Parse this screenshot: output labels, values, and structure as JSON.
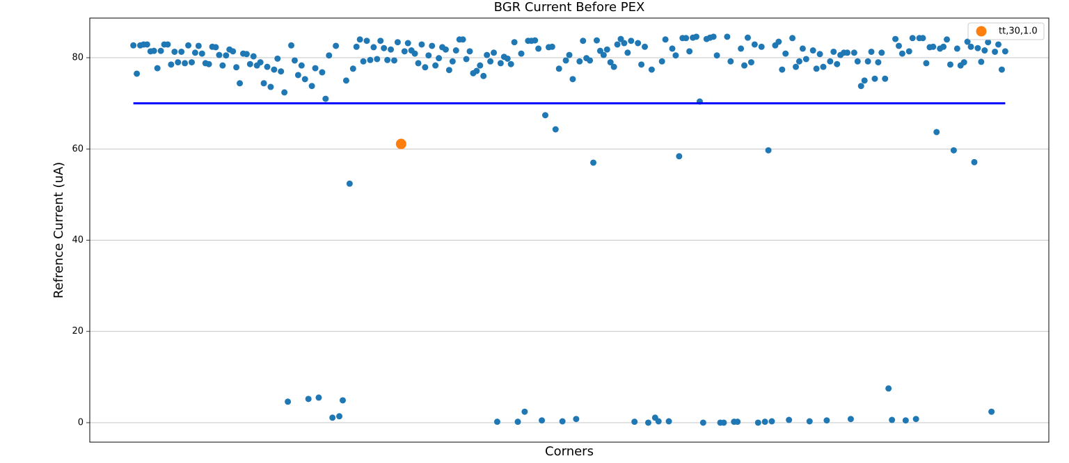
{
  "chart_data": {
    "type": "scatter",
    "title": "BGR Current Before PEX",
    "xlabel": "Corners",
    "ylabel": "Refrence Current (uA)",
    "xlim": [
      -12.7,
      266.7
    ],
    "ylim": [
      -4.27,
      88.69
    ],
    "yticks": [
      0,
      20,
      40,
      60,
      80
    ],
    "grid": true,
    "legend": "upper right",
    "series": [
      {
        "kind": "scatter",
        "color": "#1f77b4",
        "x": [
          0,
          1,
          2,
          3,
          4,
          5,
          6,
          7,
          8,
          9,
          10,
          11,
          12,
          13,
          14,
          15,
          16,
          17,
          18,
          19,
          20,
          21,
          22,
          23,
          24,
          25,
          26,
          27,
          28,
          29,
          30,
          31,
          32,
          33,
          34,
          35,
          36,
          37,
          38,
          39,
          40,
          41,
          42,
          43,
          44,
          45,
          46,
          47,
          48,
          49,
          50,
          51,
          52,
          53,
          54,
          55,
          56,
          57,
          58,
          59,
          60,
          61,
          62,
          63,
          64,
          65,
          66,
          67,
          68,
          69,
          70,
          71,
          72,
          73,
          74,
          75,
          76,
          77,
          78,
          79,
          80,
          81,
          82,
          83,
          84,
          85,
          86,
          87,
          88,
          89,
          90,
          91,
          92,
          93,
          94,
          95,
          96,
          97,
          98,
          99,
          100,
          101,
          102,
          103,
          104,
          105,
          106,
          107,
          108,
          109,
          110,
          111,
          112,
          113,
          114,
          115,
          116,
          117,
          118,
          119,
          120,
          121,
          122,
          123,
          124,
          125,
          126,
          127,
          128,
          129,
          130,
          131,
          132,
          133,
          134,
          135,
          136,
          137,
          138,
          139,
          140,
          141,
          142,
          143,
          144,
          145,
          146,
          147,
          148,
          149,
          150,
          151,
          152,
          153,
          154,
          155,
          156,
          157,
          158,
          159,
          160,
          161,
          162,
          163,
          164,
          165,
          166,
          167,
          168,
          169,
          170,
          171,
          172,
          173,
          174,
          175,
          176,
          177,
          178,
          179,
          180,
          181,
          182,
          183,
          184,
          185,
          186,
          187,
          188,
          189,
          190,
          191,
          192,
          193,
          194,
          195,
          196,
          197,
          198,
          199,
          200,
          201,
          202,
          203,
          204,
          205,
          206,
          207,
          208,
          209,
          210,
          211,
          212,
          213,
          214,
          215,
          216,
          217,
          218,
          219,
          220,
          221,
          222,
          223,
          224,
          225,
          226,
          227,
          228,
          229,
          230,
          231,
          232,
          233,
          234,
          235,
          236,
          237,
          238,
          239,
          240,
          241,
          242,
          243,
          244,
          245,
          246,
          247,
          248,
          249,
          250,
          251,
          252,
          253,
          254
        ],
        "values": [
          82.7,
          76.5,
          82.7,
          82.9,
          82.9,
          81.4,
          81.5,
          77.7,
          81.5,
          82.9,
          82.9,
          78.5,
          81.3,
          79.0,
          81.3,
          78.8,
          82.7,
          79.0,
          81.1,
          82.6,
          80.9,
          78.8,
          78.6,
          82.4,
          82.3,
          80.6,
          78.3,
          80.5,
          81.8,
          81.4,
          77.9,
          74.4,
          80.9,
          80.8,
          78.6,
          80.3,
          78.3,
          79.0,
          74.4,
          78.0,
          73.6,
          77.4,
          79.8,
          77.0,
          72.4,
          4.6,
          82.7,
          79.4,
          76.2,
          78.3,
          75.3,
          5.2,
          73.8,
          77.7,
          5.5,
          76.8,
          71.0,
          80.5,
          1.1,
          82.6,
          1.4,
          4.9,
          75.0,
          52.4,
          77.6,
          82.4,
          84.0,
          79.2,
          83.7,
          79.5,
          82.3,
          79.7,
          83.7,
          82.1,
          79.5,
          81.8,
          79.4,
          83.4,
          61.1,
          81.4,
          83.2,
          81.6,
          80.9,
          78.8,
          82.9,
          77.9,
          80.5,
          82.6,
          78.3,
          79.9,
          82.3,
          81.8,
          77.3,
          79.2,
          81.6,
          84.0,
          84.0,
          79.7,
          81.4,
          76.6,
          77.1,
          78.3,
          76.0,
          80.6,
          79.2,
          81.1,
          0.2,
          78.8,
          80.2,
          79.8,
          78.6,
          83.4,
          0.2,
          80.9,
          2.4,
          83.7,
          83.7,
          83.8,
          82.0,
          0.5,
          67.4,
          82.3,
          82.4,
          64.3,
          77.6,
          0.3,
          79.4,
          80.6,
          75.3,
          0.8,
          79.2,
          83.7,
          79.9,
          79.4,
          57.0,
          83.8,
          81.5,
          80.6,
          81.8,
          79.0,
          78.0,
          82.9,
          84.1,
          83.2,
          81.1,
          83.7,
          0.2,
          83.2,
          78.5,
          82.4,
          0.0,
          77.4,
          1.1,
          0.3,
          79.2,
          84.0,
          0.3,
          82.0,
          80.5,
          58.4,
          84.3,
          84.3,
          81.4,
          84.4,
          84.6,
          70.4,
          0.0,
          84.1,
          84.4,
          84.6,
          80.5,
          0.0,
          0.0,
          84.6,
          79.2,
          0.2,
          0.2,
          82.0,
          78.3,
          84.4,
          79.0,
          82.9,
          0.0,
          82.4,
          0.2,
          59.7,
          0.3,
          82.7,
          83.5,
          77.4,
          80.9,
          0.6,
          84.3,
          78.0,
          79.2,
          82.0,
          79.7,
          0.3,
          81.6,
          77.6,
          80.8,
          78.0,
          0.5,
          79.2,
          81.3,
          78.6,
          80.6,
          81.1,
          81.1,
          0.8,
          81.1,
          79.2,
          73.8,
          75.0,
          79.2,
          81.3,
          75.4,
          79.0,
          81.1,
          75.4,
          7.5,
          0.6,
          84.1,
          82.6,
          80.9,
          0.5,
          81.4,
          84.3,
          0.8,
          84.3,
          84.3,
          78.8,
          82.3,
          82.4,
          63.7,
          82.0,
          82.4,
          84.0,
          78.5,
          59.7,
          82.0,
          78.3,
          79.0,
          83.5,
          82.4,
          57.1,
          82.1,
          79.1,
          81.6,
          83.4,
          2.4,
          81.3,
          82.9,
          77.4,
          81.4
        ]
      },
      {
        "kind": "line",
        "color": "#0000ff",
        "x": [
          0,
          254
        ],
        "values": [
          70,
          70
        ]
      },
      {
        "kind": "scatter",
        "name": "tt,30,1.0",
        "color": "#ff7f0e",
        "x": [
          78
        ],
        "values": [
          61.1
        ]
      }
    ]
  }
}
